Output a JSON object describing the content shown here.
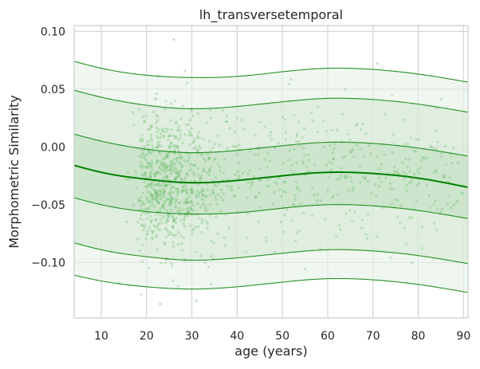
{
  "chart_data": {
    "type": "line",
    "title": "lh_transversetemporal",
    "xlabel": "age (years)",
    "ylabel": "Morphometric Similarity",
    "xlim": [
      4,
      91
    ],
    "ylim": [
      -0.148,
      0.105
    ],
    "x_ticks": [
      10,
      20,
      30,
      40,
      50,
      60,
      70,
      80,
      90
    ],
    "x_tick_labels": [
      "10",
      "20",
      "30",
      "40",
      "50",
      "60",
      "70",
      "80",
      "90"
    ],
    "y_ticks": [
      0.1,
      0.05,
      0.0,
      -0.05,
      -0.1
    ],
    "y_tick_labels": [
      "0.10",
      "0.05",
      "0.00",
      "−0.05",
      "−0.10"
    ],
    "grid": true,
    "legend": "none",
    "colors": {
      "line": "#008000",
      "band_outer": "#e6f2e6",
      "band_middle": "#d3e8d3",
      "band_inner": "#bfdfbf",
      "scatter": "#5cb85c",
      "grid": "#cccccc",
      "spine": "#cccccc"
    },
    "x": [
      4,
      10,
      20,
      30,
      40,
      50,
      60,
      70,
      80,
      91
    ],
    "series": [
      {
        "values": [
          0.074,
          0.068,
          0.062,
          0.06,
          0.061,
          0.065,
          0.068,
          0.067,
          0.063,
          0.056
        ]
      },
      {
        "values": [
          0.049,
          0.043,
          0.036,
          0.033,
          0.035,
          0.039,
          0.042,
          0.041,
          0.037,
          0.03
        ]
      },
      {
        "values": [
          0.011,
          0.005,
          -0.002,
          -0.005,
          -0.003,
          0.001,
          0.004,
          0.003,
          -0.001,
          -0.008
        ]
      },
      {
        "values": [
          -0.016,
          -0.022,
          -0.028,
          -0.031,
          -0.029,
          -0.025,
          -0.022,
          -0.023,
          -0.027,
          -0.035
        ]
      },
      {
        "values": [
          -0.044,
          -0.05,
          -0.056,
          -0.058,
          -0.057,
          -0.053,
          -0.05,
          -0.051,
          -0.055,
          -0.062
        ]
      },
      {
        "values": [
          -0.083,
          -0.089,
          -0.095,
          -0.098,
          -0.096,
          -0.092,
          -0.089,
          -0.09,
          -0.094,
          -0.101
        ]
      },
      {
        "values": [
          -0.111,
          -0.116,
          -0.121,
          -0.123,
          -0.121,
          -0.117,
          -0.114,
          -0.115,
          -0.119,
          -0.126
        ]
      }
    ],
    "scatter": {
      "n_points": 1100,
      "x_mean": 32,
      "x_spread": 17,
      "y_spread": 0.03,
      "extreme_points": [
        [
          26,
          0.093
        ],
        [
          23,
          -0.136
        ],
        [
          31,
          -0.133
        ],
        [
          71,
          0.072
        ],
        [
          14,
          -0.118
        ]
      ]
    }
  }
}
